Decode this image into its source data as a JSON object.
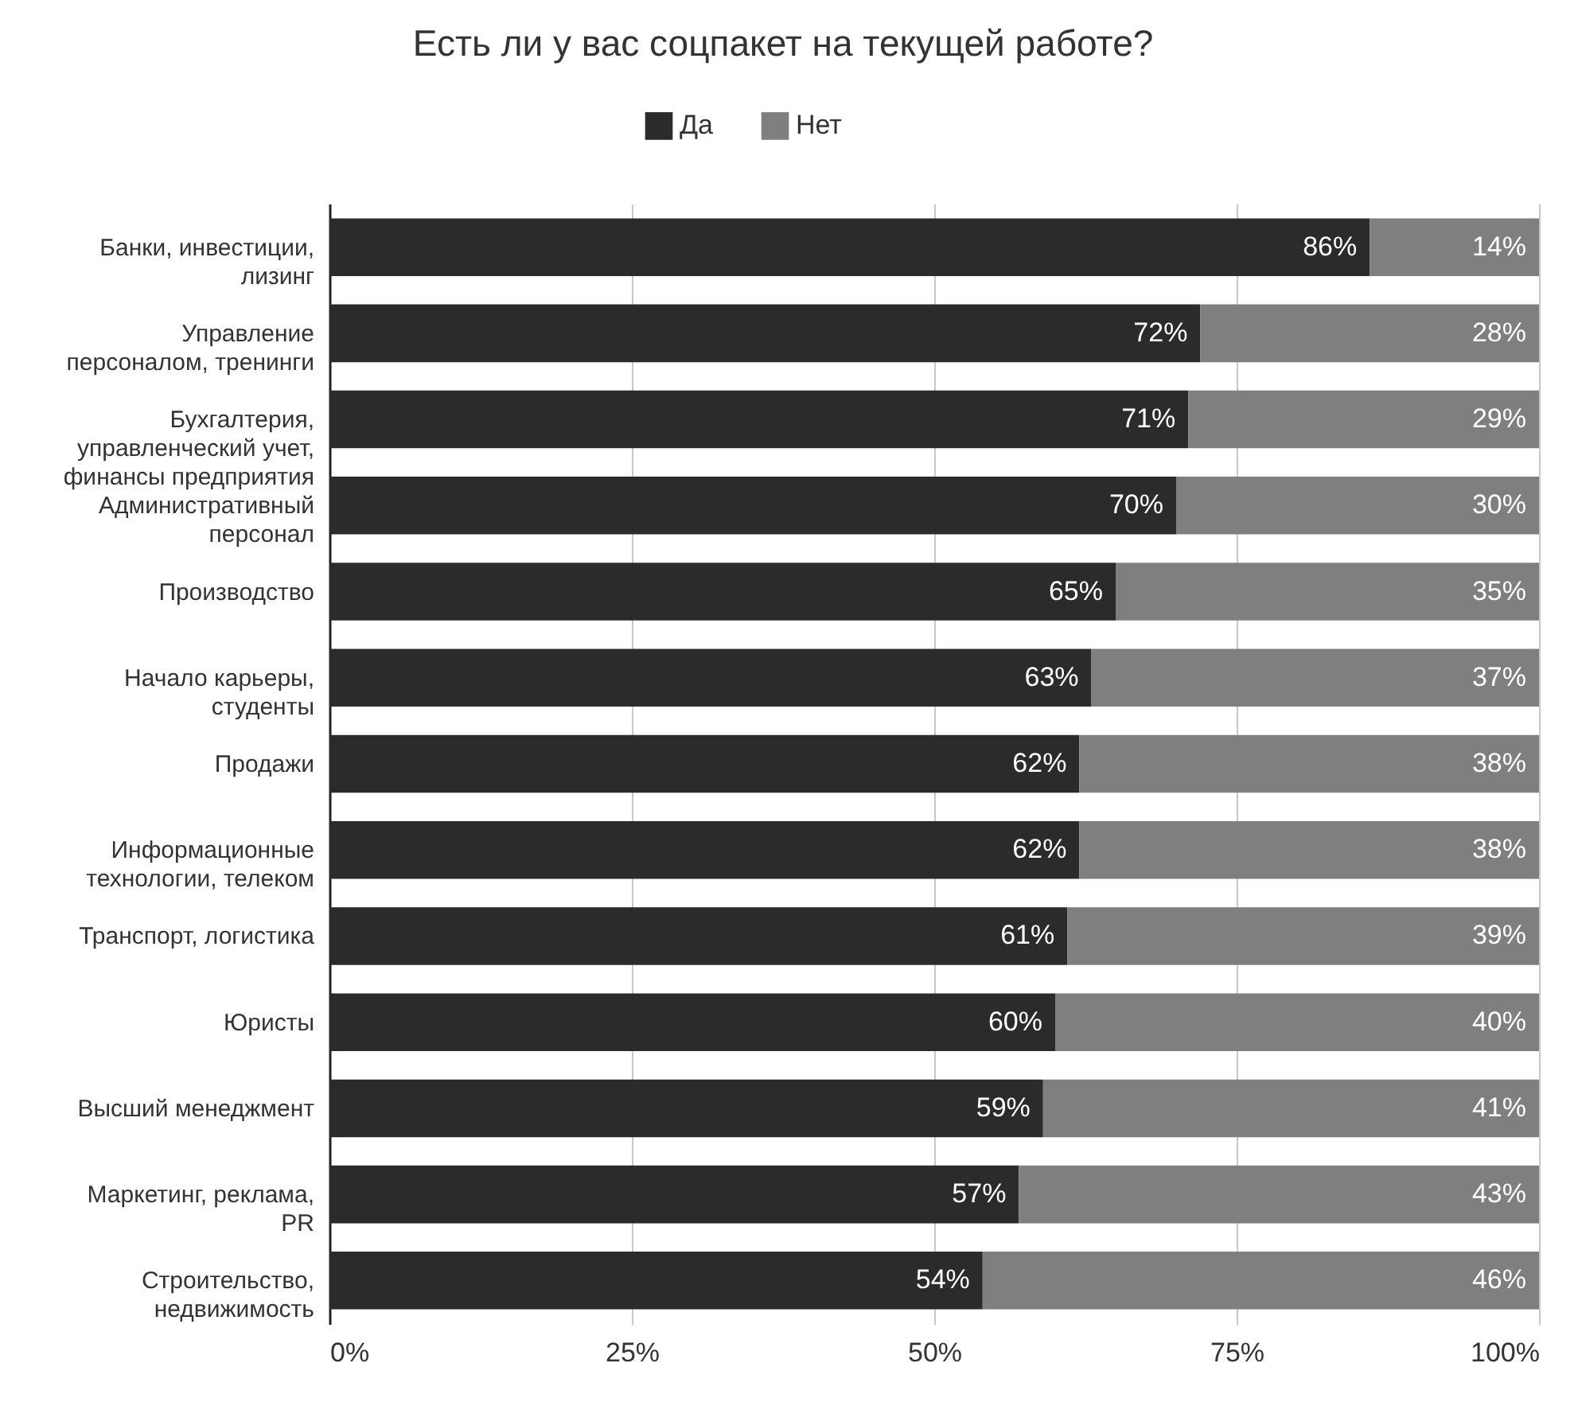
{
  "chart_data": {
    "type": "bar",
    "orientation": "horizontal",
    "stacked": true,
    "title": "Есть ли у вас соцпакет на текущей работе?",
    "categories": [
      "Банки, инвестиции, лизинг",
      "Управление персоналом, тренинги",
      "Бухгалтерия, управленческий учет, финансы предприятия",
      "Административный персонал",
      "Производство",
      "Начало карьеры, студенты",
      "Продажи",
      "Информационные технологии, телеком",
      "Транспорт, логистика",
      "Юристы",
      "Высший менеджмент",
      "Маркетинг, реклама, PR",
      "Строительство, недвижимость"
    ],
    "series": [
      {
        "name": "Да",
        "color": "#2b2b2b",
        "values": [
          86,
          72,
          71,
          70,
          65,
          63,
          62,
          62,
          61,
          60,
          59,
          57,
          54
        ],
        "value_labels": [
          "86%",
          "72%",
          "71%",
          "70%",
          "65%",
          "63%",
          "62%",
          "62%",
          "61%",
          "60%",
          "59%",
          "57%",
          "54%"
        ]
      },
      {
        "name": "Нет",
        "color": "#7f7f7f",
        "values": [
          14,
          28,
          29,
          30,
          35,
          37,
          38,
          38,
          39,
          40,
          41,
          43,
          46
        ],
        "value_labels": [
          "14%",
          "28%",
          "29%",
          "30%",
          "35%",
          "37%",
          "38%",
          "38%",
          "39%",
          "40%",
          "41%",
          "43%",
          "46%"
        ]
      }
    ],
    "xlim": [
      0,
      100
    ],
    "xticks": [
      {
        "value": 0,
        "label": "0%"
      },
      {
        "value": 25,
        "label": "25%"
      },
      {
        "value": 50,
        "label": "50%"
      },
      {
        "value": 75,
        "label": "75%"
      },
      {
        "value": 100,
        "label": "100%"
      }
    ],
    "grid": "x",
    "legend": "top"
  }
}
